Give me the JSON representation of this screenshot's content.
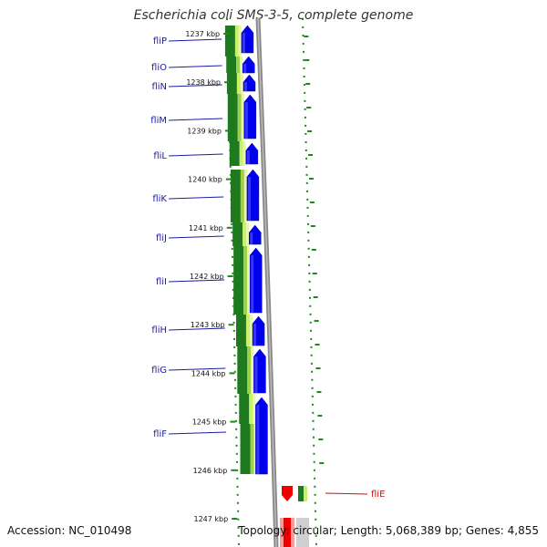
{
  "title": "Escherichia coli SMS-3-5, complete genome",
  "footer": {
    "accession": "Accession: NC_010498",
    "summary": "Topology: circular; Length: 5,068,389 bp; Genes: 4,855"
  },
  "scale": {
    "unit": "kbp",
    "ticks": [
      "1237 kbp",
      "1238 kbp",
      "1239 kbp",
      "1240 kbp",
      "1241 kbp",
      "1242 kbp",
      "1243 kbp",
      "1244 kbp",
      "1245 kbp",
      "1246 kbp",
      "1247 kbp"
    ]
  },
  "genes": [
    {
      "name": "fliP",
      "highlight": false
    },
    {
      "name": "fliO",
      "highlight": false
    },
    {
      "name": "fliN",
      "highlight": false
    },
    {
      "name": "fliM",
      "highlight": false
    },
    {
      "name": "fliL",
      "highlight": false
    },
    {
      "name": "fliK",
      "highlight": false
    },
    {
      "name": "fliJ",
      "highlight": false
    },
    {
      "name": "fliI",
      "highlight": false
    },
    {
      "name": "fliH",
      "highlight": false
    },
    {
      "name": "fliG",
      "highlight": false
    },
    {
      "name": "fliF",
      "highlight": false
    },
    {
      "name": "fliE",
      "highlight": true
    }
  ],
  "colors": {
    "forward_gene": "#0000ee",
    "highlight_gene": "#ee0000",
    "gc_dark": "#1f7a1f",
    "gc_light": "#c9f06a",
    "backbone": "#888888",
    "label_blue": "#1a1aa6",
    "label_red": "#cc1010",
    "tick_green": "#1a8a1a"
  }
}
